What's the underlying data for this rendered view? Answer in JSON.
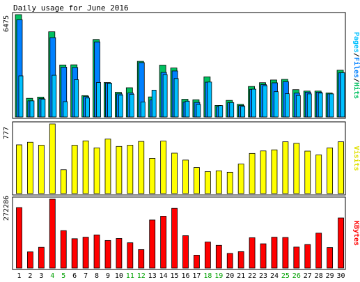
{
  "chart_data": {
    "type": "bar",
    "title": "Daily usage for June 2016",
    "categories": [
      "1",
      "2",
      "3",
      "4",
      "5",
      "6",
      "7",
      "8",
      "9",
      "10",
      "11",
      "12",
      "13",
      "14",
      "15",
      "16",
      "17",
      "18",
      "19",
      "20",
      "21",
      "22",
      "23",
      "24",
      "25",
      "26",
      "27",
      "28",
      "29",
      "30"
    ],
    "weekend_days": [
      "4",
      "5",
      "11",
      "12",
      "18",
      "19",
      "25",
      "26"
    ],
    "panels": [
      {
        "id": "hits",
        "y_label": "6475",
        "y_max": 6475,
        "legend": {
          "parts": [
            {
              "text": "Pages",
              "color": "#00c0ff"
            },
            {
              "text": "/",
              "color": "#000000"
            },
            {
              "text": "Files",
              "color": "#0080ff"
            },
            {
              "text": "/",
              "color": "#000000"
            },
            {
              "text": "Hits",
              "color": "#00c060"
            }
          ]
        },
        "series": [
          {
            "name": "Hits",
            "color": "#00c060",
            "values": [
              6475,
              1180,
              1260,
              5390,
              3290,
              3300,
              1350,
              4900,
              2180,
              1560,
              1850,
              3520,
              1270,
              3280,
              3100,
              1120,
              1090,
              2540,
              730,
              1050,
              800,
              1930,
              2170,
              2340,
              2380,
              1730,
              1640,
              1640,
              1520,
              2960
            ]
          },
          {
            "name": "Files",
            "color": "#0080ff",
            "values": [
              6150,
              1020,
              1160,
              5020,
              3150,
              3130,
              1290,
              4750,
              2150,
              1460,
              1520,
              3440,
              1080,
              2820,
              2910,
              940,
              920,
              2200,
              650,
              900,
              720,
              1750,
              2050,
              2160,
              2230,
              1510,
              1570,
              1570,
              1460,
              2790
            ]
          },
          {
            "name": "Pages",
            "color": "#00c0ff",
            "values": [
              2600,
              1020,
              1130,
              2640,
              970,
              2360,
              1200,
              2180,
              2130,
              1380,
              1440,
              950,
              1700,
              2680,
              2430,
              1000,
              790,
              2210,
              720,
              910,
              670,
              1760,
              1980,
              1600,
              1470,
              1360,
              1460,
              1510,
              1460,
              2800
            ]
          }
        ]
      },
      {
        "id": "visits",
        "y_label": "777",
        "y_max": 777,
        "legend": {
          "parts": [
            {
              "text": "Visits",
              "color": "#e0e000"
            }
          ]
        },
        "series": [
          {
            "name": "Visits",
            "color": "#ffff00",
            "values": [
              544,
              573,
              540,
              777,
              266,
              539,
              588,
              510,
              608,
              526,
              540,
              582,
              393,
              586,
              451,
              374,
              291,
              245,
              254,
              238,
              330,
              448,
              476,
              488,
              578,
              561,
              474,
              432,
              510,
              578
            ]
          }
        ]
      },
      {
        "id": "kbytes",
        "y_label": "272286",
        "y_max": 272286,
        "legend": {
          "parts": [
            {
              "text": "KBytes",
              "color": "#ff0000"
            }
          ]
        },
        "series": [
          {
            "name": "KBytes",
            "color": "#ff0000",
            "values": [
              239000,
              64000,
              82000,
              272286,
              148000,
              116000,
              122000,
              131000,
              109000,
              117000,
              100000,
              73000,
              190000,
              205000,
              236000,
              128000,
              51000,
              103000,
              90000,
              58000,
              65000,
              120000,
              96000,
              122000,
              121000,
              83000,
              93000,
              138000,
              81000,
              198000
            ]
          }
        ]
      }
    ]
  }
}
